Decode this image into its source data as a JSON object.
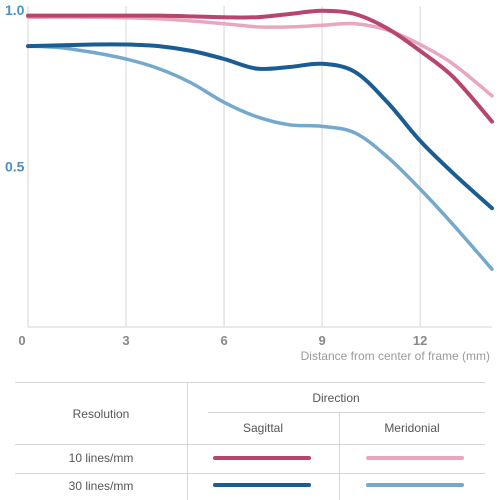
{
  "chart_data": {
    "type": "line",
    "y_tick_labels": [
      "0",
      "0.5",
      "1.0"
    ],
    "x_tick_labels": [
      "0",
      "3",
      "6",
      "9",
      "12"
    ],
    "xlabel": "Distance from center of frame (mm)",
    "xlim": [
      0,
      14.2
    ],
    "ylim": [
      0,
      1.0
    ],
    "grid": "vertical",
    "series": [
      {
        "name": "10 lines/mm Sagittal",
        "color": "#b84570",
        "style": "thick",
        "x": [
          0,
          2,
          4,
          6,
          7,
          8,
          9,
          10,
          11,
          12,
          13,
          14.2
        ],
        "y": [
          0.97,
          0.97,
          0.97,
          0.965,
          0.965,
          0.975,
          0.985,
          0.975,
          0.93,
          0.86,
          0.78,
          0.64
        ]
      },
      {
        "name": "10 lines/mm Meridonial",
        "color": "#e8a7bd",
        "style": "thin",
        "x": [
          0,
          2,
          4,
          6,
          7,
          8,
          9,
          10,
          11,
          12,
          13,
          14.2
        ],
        "y": [
          0.965,
          0.965,
          0.96,
          0.945,
          0.935,
          0.935,
          0.94,
          0.945,
          0.925,
          0.88,
          0.82,
          0.72
        ]
      },
      {
        "name": "30 lines/mm Sagittal",
        "color": "#1b5c92",
        "style": "thick",
        "x": [
          0,
          2,
          3,
          4,
          5,
          6,
          7,
          8,
          9,
          10,
          11,
          12,
          13,
          14.2
        ],
        "y": [
          0.875,
          0.88,
          0.88,
          0.875,
          0.86,
          0.835,
          0.805,
          0.81,
          0.82,
          0.795,
          0.7,
          0.58,
          0.48,
          0.37
        ]
      },
      {
        "name": "30 lines/mm Meridonial",
        "color": "#74a9cd",
        "style": "thin",
        "x": [
          0,
          1,
          2,
          3,
          4,
          5,
          6,
          7,
          8,
          9,
          10,
          11,
          12,
          13,
          14.2
        ],
        "y": [
          0.875,
          0.87,
          0.855,
          0.835,
          0.805,
          0.76,
          0.7,
          0.655,
          0.63,
          0.625,
          0.605,
          0.53,
          0.43,
          0.32,
          0.18
        ]
      }
    ]
  },
  "legend": {
    "direction_header": "Direction",
    "resolution_header": "Resolution",
    "sagittal_header": "Sagittal",
    "meridonial_header": "Meridonial",
    "rows": [
      {
        "label": "10 lines/mm",
        "sagittal_color": "#b84570",
        "meridonial_color": "#e8a7bd"
      },
      {
        "label": "30 lines/mm",
        "sagittal_color": "#1b5c92",
        "meridonial_color": "#74a9cd"
      }
    ]
  },
  "colors": {
    "y_label_color": "#4e8fc0",
    "grid_color": "#d6d6d6"
  }
}
